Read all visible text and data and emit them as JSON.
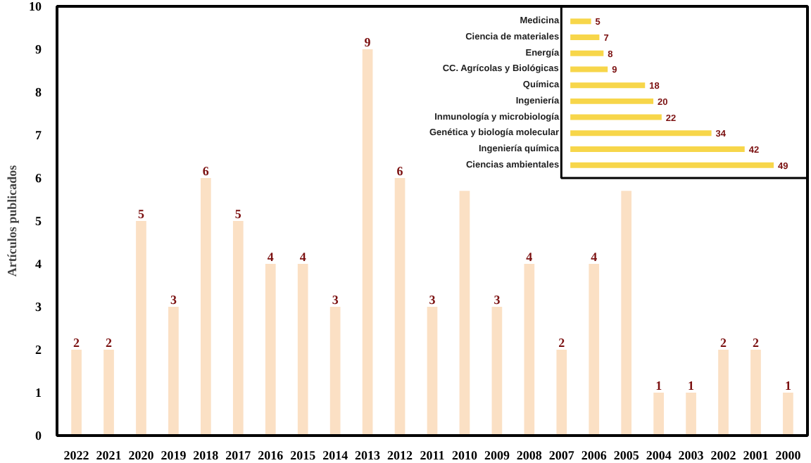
{
  "chart_data": [
    {
      "type": "bar",
      "ylabel": "Artículos publicados",
      "categories": [
        "2022",
        "2021",
        "2020",
        "2019",
        "2018",
        "2017",
        "2016",
        "2015",
        "2014",
        "2013",
        "2012",
        "2011",
        "2010",
        "2009",
        "2008",
        "2007",
        "2006",
        "2005",
        "2004",
        "2003",
        "2002",
        "2001",
        "2000"
      ],
      "values": [
        2,
        2,
        5,
        3,
        6,
        5,
        4,
        4,
        3,
        9,
        6,
        3,
        5.7,
        3,
        4,
        2,
        4,
        5.7,
        1,
        1,
        2,
        2,
        1
      ],
      "value_labels": [
        "2",
        "2",
        "5",
        "3",
        "6",
        "5",
        "4",
        "4",
        "3",
        "9",
        "6",
        "3",
        null,
        "3",
        "4",
        "2",
        "4",
        null,
        "1",
        "1",
        "2",
        "2",
        "1"
      ],
      "color": "#fbe0c4",
      "ylim": [
        0,
        10
      ],
      "yticks": [
        0,
        1,
        2,
        3,
        4,
        5,
        6,
        7,
        8,
        9,
        10
      ],
      "grid": false
    },
    {
      "type": "bar",
      "orientation": "horizontal",
      "categories": [
        "Medicina",
        "Ciencia de materiales",
        "Energía",
        "CC. Agrícolas y Biológicas",
        "Química",
        "Ingeniería",
        "Inmunología y microbiología",
        "Genética y biología molecular",
        "Ingeniería química",
        "Ciencias ambientales"
      ],
      "values": [
        5,
        7,
        8,
        9,
        18,
        20,
        22,
        34,
        42,
        49
      ],
      "color": "#f7d64a",
      "data_labels": true,
      "tick_labels": "y"
    }
  ]
}
